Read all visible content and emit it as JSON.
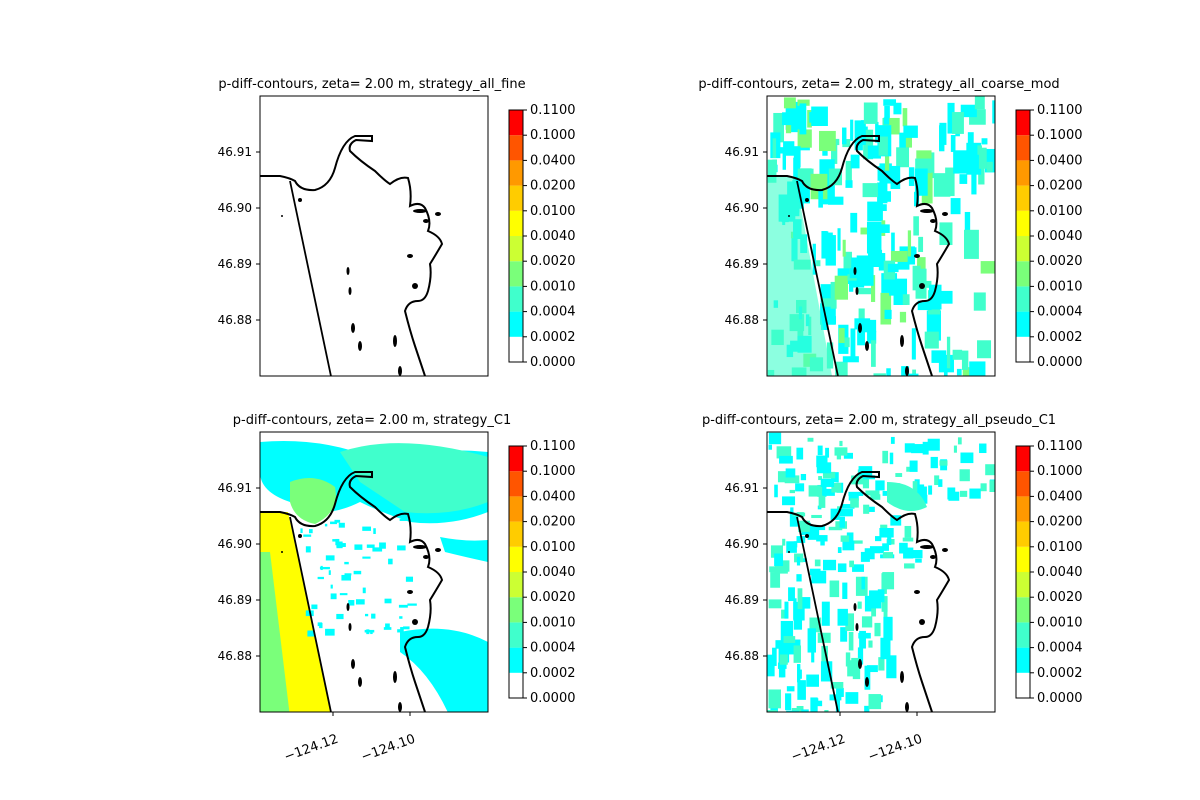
{
  "figure": {
    "type": "contour map grid"
  },
  "colorbar": {
    "levels": [
      "0.0000",
      "0.0002",
      "0.0004",
      "0.0010",
      "0.0020",
      "0.0040",
      "0.0100",
      "0.0200",
      "0.0400",
      "0.1000",
      "0.1100"
    ],
    "colors": [
      "#ffffff",
      "#00ffff",
      "#40ffcc",
      "#7aff7a",
      "#ccff33",
      "#ffff00",
      "#ffcc00",
      "#ff9900",
      "#ff5500",
      "#ff0000"
    ]
  },
  "chart_data": [
    {
      "type": "heatmap",
      "title": "p-diff-contours, zeta= 2.00 m, strategy_all_fine",
      "y_ticks": [
        "46.91",
        "46.90",
        "46.89",
        "46.88"
      ],
      "x_ticks": [],
      "fill": "none",
      "legend": "right"
    },
    {
      "type": "heatmap",
      "title": "p-diff-contours, zeta= 2.00 m, strategy_all_coarse_mod",
      "y_ticks": [
        "46.91",
        "46.90",
        "46.89",
        "46.88"
      ],
      "x_ticks": [],
      "fill": "coarse",
      "legend": "right"
    },
    {
      "type": "heatmap",
      "title": "p-diff-contours, zeta= 2.00 m, strategy_C1",
      "y_ticks": [
        "46.91",
        "46.90",
        "46.89",
        "46.88"
      ],
      "x_ticks": [
        "−124.12",
        "−124.10"
      ],
      "fill": "c1",
      "legend": "right"
    },
    {
      "type": "heatmap",
      "title": "p-diff-contours, zeta= 2.00 m, strategy_all_pseudo_C1",
      "y_ticks": [
        "46.91",
        "46.90",
        "46.89",
        "46.88"
      ],
      "x_ticks": [
        "−124.12",
        "−124.10"
      ],
      "fill": "pseudo",
      "legend": "right"
    }
  ]
}
